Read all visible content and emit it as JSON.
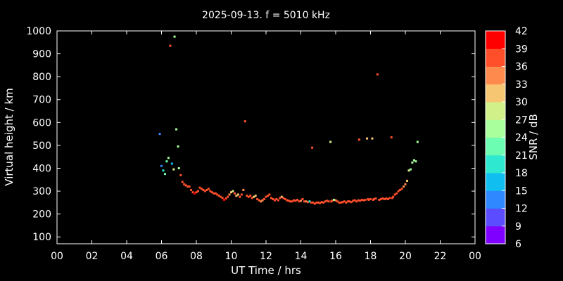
{
  "chart_data": {
    "type": "scatter",
    "title": "2025-09-13. f = 5010 kHz",
    "xlabel": "UT Time / hrs",
    "ylabel": "Virtual height / km",
    "xlim": [
      0,
      24
    ],
    "ylim": [
      70,
      1000
    ],
    "xticks": [
      "00",
      "02",
      "04",
      "06",
      "08",
      "10",
      "12",
      "14",
      "16",
      "18",
      "20",
      "22",
      "00"
    ],
    "yticks": [
      100,
      200,
      300,
      400,
      500,
      600,
      700,
      800,
      900,
      1000
    ],
    "background": "#000000",
    "grid": false,
    "colorbar": {
      "label": "SNR / dB",
      "range": [
        6,
        42
      ],
      "ticks": [
        6,
        9,
        12,
        15,
        18,
        21,
        24,
        27,
        30,
        33,
        36,
        39,
        42
      ],
      "colors": [
        "#7f00ff",
        "#5b4dff",
        "#2f88ff",
        "#10bff0",
        "#2ee8d0",
        "#6cfcb2",
        "#a8ff9c",
        "#d2f08a",
        "#f6c673",
        "#ff8a4e",
        "#ff4f2a",
        "#ff0000"
      ]
    },
    "points": [
      {
        "x": 5.9,
        "y": 550,
        "snr": 14
      },
      {
        "x": 6.0,
        "y": 410,
        "snr": 14
      },
      {
        "x": 6.1,
        "y": 390,
        "snr": 20
      },
      {
        "x": 6.2,
        "y": 375,
        "snr": 21
      },
      {
        "x": 6.3,
        "y": 430,
        "snr": 22
      },
      {
        "x": 6.4,
        "y": 445,
        "snr": 25
      },
      {
        "x": 6.5,
        "y": 935,
        "snr": 36
      },
      {
        "x": 6.6,
        "y": 420,
        "snr": 15
      },
      {
        "x": 6.7,
        "y": 395,
        "snr": 27
      },
      {
        "x": 6.75,
        "y": 975,
        "snr": 24
      },
      {
        "x": 6.85,
        "y": 570,
        "snr": 24
      },
      {
        "x": 6.95,
        "y": 495,
        "snr": 26
      },
      {
        "x": 7.0,
        "y": 400,
        "snr": 25
      },
      {
        "x": 7.1,
        "y": 370,
        "snr": 38
      },
      {
        "x": 7.2,
        "y": 340,
        "snr": 38
      },
      {
        "x": 7.3,
        "y": 330,
        "snr": 37
      },
      {
        "x": 7.4,
        "y": 325,
        "snr": 38
      },
      {
        "x": 7.5,
        "y": 320,
        "snr": 36
      },
      {
        "x": 7.6,
        "y": 320,
        "snr": 38
      },
      {
        "x": 7.7,
        "y": 305,
        "snr": 37
      },
      {
        "x": 7.8,
        "y": 295,
        "snr": 38
      },
      {
        "x": 7.9,
        "y": 290,
        "snr": 39
      },
      {
        "x": 8.0,
        "y": 295,
        "snr": 38
      },
      {
        "x": 8.1,
        "y": 300,
        "snr": 37
      },
      {
        "x": 8.2,
        "y": 315,
        "snr": 38
      },
      {
        "x": 8.3,
        "y": 310,
        "snr": 38
      },
      {
        "x": 8.4,
        "y": 305,
        "snr": 37
      },
      {
        "x": 8.5,
        "y": 300,
        "snr": 38
      },
      {
        "x": 8.6,
        "y": 305,
        "snr": 36
      },
      {
        "x": 8.7,
        "y": 310,
        "snr": 37
      },
      {
        "x": 8.8,
        "y": 300,
        "snr": 38
      },
      {
        "x": 8.9,
        "y": 295,
        "snr": 38
      },
      {
        "x": 9.0,
        "y": 290,
        "snr": 37
      },
      {
        "x": 9.1,
        "y": 290,
        "snr": 38
      },
      {
        "x": 9.2,
        "y": 285,
        "snr": 38
      },
      {
        "x": 9.3,
        "y": 280,
        "snr": 37
      },
      {
        "x": 9.4,
        "y": 275,
        "snr": 38
      },
      {
        "x": 9.5,
        "y": 270,
        "snr": 38
      },
      {
        "x": 9.6,
        "y": 262,
        "snr": 39
      },
      {
        "x": 9.7,
        "y": 268,
        "snr": 38
      },
      {
        "x": 9.8,
        "y": 275,
        "snr": 36
      },
      {
        "x": 9.9,
        "y": 285,
        "snr": 33
      },
      {
        "x": 10.0,
        "y": 295,
        "snr": 31
      },
      {
        "x": 10.1,
        "y": 300,
        "snr": 29
      },
      {
        "x": 10.2,
        "y": 290,
        "snr": 36
      },
      {
        "x": 10.3,
        "y": 280,
        "snr": 30
      },
      {
        "x": 10.4,
        "y": 285,
        "snr": 32
      },
      {
        "x": 10.5,
        "y": 275,
        "snr": 38
      },
      {
        "x": 10.6,
        "y": 285,
        "snr": 37
      },
      {
        "x": 10.7,
        "y": 305,
        "snr": 33
      },
      {
        "x": 10.8,
        "y": 605,
        "snr": 38
      },
      {
        "x": 10.9,
        "y": 280,
        "snr": 38
      },
      {
        "x": 11.0,
        "y": 275,
        "snr": 37
      },
      {
        "x": 11.1,
        "y": 280,
        "snr": 38
      },
      {
        "x": 11.2,
        "y": 270,
        "snr": 38
      },
      {
        "x": 11.3,
        "y": 275,
        "snr": 32
      },
      {
        "x": 11.4,
        "y": 280,
        "snr": 30
      },
      {
        "x": 11.5,
        "y": 265,
        "snr": 37
      },
      {
        "x": 11.6,
        "y": 260,
        "snr": 38
      },
      {
        "x": 11.7,
        "y": 255,
        "snr": 34
      },
      {
        "x": 11.8,
        "y": 260,
        "snr": 33
      },
      {
        "x": 11.9,
        "y": 265,
        "snr": 37
      },
      {
        "x": 12.0,
        "y": 275,
        "snr": 38
      },
      {
        "x": 12.1,
        "y": 280,
        "snr": 36
      },
      {
        "x": 12.2,
        "y": 285,
        "snr": 38
      },
      {
        "x": 12.3,
        "y": 270,
        "snr": 38
      },
      {
        "x": 12.4,
        "y": 265,
        "snr": 37
      },
      {
        "x": 12.5,
        "y": 260,
        "snr": 38
      },
      {
        "x": 12.6,
        "y": 265,
        "snr": 36
      },
      {
        "x": 12.7,
        "y": 260,
        "snr": 38
      },
      {
        "x": 12.8,
        "y": 270,
        "snr": 37
      },
      {
        "x": 12.9,
        "y": 275,
        "snr": 31
      },
      {
        "x": 13.0,
        "y": 270,
        "snr": 38
      },
      {
        "x": 13.1,
        "y": 265,
        "snr": 36
      },
      {
        "x": 13.2,
        "y": 260,
        "snr": 38
      },
      {
        "x": 13.3,
        "y": 258,
        "snr": 38
      },
      {
        "x": 13.4,
        "y": 255,
        "snr": 37
      },
      {
        "x": 13.5,
        "y": 255,
        "snr": 38
      },
      {
        "x": 13.6,
        "y": 260,
        "snr": 37
      },
      {
        "x": 13.7,
        "y": 258,
        "snr": 38
      },
      {
        "x": 13.8,
        "y": 262,
        "snr": 36
      },
      {
        "x": 13.9,
        "y": 255,
        "snr": 38
      },
      {
        "x": 14.0,
        "y": 258,
        "snr": 35
      },
      {
        "x": 14.1,
        "y": 265,
        "snr": 37
      },
      {
        "x": 14.2,
        "y": 255,
        "snr": 38
      },
      {
        "x": 14.3,
        "y": 255,
        "snr": 33
      },
      {
        "x": 14.4,
        "y": 252,
        "snr": 38
      },
      {
        "x": 14.5,
        "y": 255,
        "snr": 20
      },
      {
        "x": 14.6,
        "y": 250,
        "snr": 38
      },
      {
        "x": 14.65,
        "y": 490,
        "snr": 38
      },
      {
        "x": 14.7,
        "y": 250,
        "snr": 37
      },
      {
        "x": 14.8,
        "y": 245,
        "snr": 38
      },
      {
        "x": 14.9,
        "y": 250,
        "snr": 38
      },
      {
        "x": 15.0,
        "y": 250,
        "snr": 37
      },
      {
        "x": 15.1,
        "y": 248,
        "snr": 38
      },
      {
        "x": 15.2,
        "y": 252,
        "snr": 38
      },
      {
        "x": 15.3,
        "y": 250,
        "snr": 37
      },
      {
        "x": 15.4,
        "y": 255,
        "snr": 38
      },
      {
        "x": 15.5,
        "y": 258,
        "snr": 38
      },
      {
        "x": 15.6,
        "y": 255,
        "snr": 37
      },
      {
        "x": 15.7,
        "y": 515,
        "snr": 28
      },
      {
        "x": 15.75,
        "y": 255,
        "snr": 38
      },
      {
        "x": 15.8,
        "y": 258,
        "snr": 37
      },
      {
        "x": 15.9,
        "y": 262,
        "snr": 26
      },
      {
        "x": 16.0,
        "y": 260,
        "snr": 35
      },
      {
        "x": 16.1,
        "y": 255,
        "snr": 38
      },
      {
        "x": 16.2,
        "y": 250,
        "snr": 37
      },
      {
        "x": 16.3,
        "y": 250,
        "snr": 38
      },
      {
        "x": 16.4,
        "y": 252,
        "snr": 38
      },
      {
        "x": 16.5,
        "y": 255,
        "snr": 37
      },
      {
        "x": 16.6,
        "y": 250,
        "snr": 38
      },
      {
        "x": 16.7,
        "y": 255,
        "snr": 38
      },
      {
        "x": 16.8,
        "y": 255,
        "snr": 37
      },
      {
        "x": 16.9,
        "y": 252,
        "snr": 38
      },
      {
        "x": 17.0,
        "y": 258,
        "snr": 38
      },
      {
        "x": 17.1,
        "y": 260,
        "snr": 37
      },
      {
        "x": 17.2,
        "y": 255,
        "snr": 38
      },
      {
        "x": 17.3,
        "y": 260,
        "snr": 38
      },
      {
        "x": 17.35,
        "y": 525,
        "snr": 38
      },
      {
        "x": 17.4,
        "y": 258,
        "snr": 37
      },
      {
        "x": 17.5,
        "y": 262,
        "snr": 38
      },
      {
        "x": 17.6,
        "y": 260,
        "snr": 38
      },
      {
        "x": 17.7,
        "y": 262,
        "snr": 37
      },
      {
        "x": 17.8,
        "y": 530,
        "snr": 30
      },
      {
        "x": 17.85,
        "y": 265,
        "snr": 38
      },
      {
        "x": 17.9,
        "y": 262,
        "snr": 38
      },
      {
        "x": 18.0,
        "y": 265,
        "snr": 37
      },
      {
        "x": 18.1,
        "y": 530,
        "snr": 30
      },
      {
        "x": 18.15,
        "y": 262,
        "snr": 38
      },
      {
        "x": 18.2,
        "y": 265,
        "snr": 38
      },
      {
        "x": 18.3,
        "y": 268,
        "snr": 37
      },
      {
        "x": 18.4,
        "y": 810,
        "snr": 36
      },
      {
        "x": 18.5,
        "y": 262,
        "snr": 38
      },
      {
        "x": 18.6,
        "y": 265,
        "snr": 38
      },
      {
        "x": 18.7,
        "y": 268,
        "snr": 37
      },
      {
        "x": 18.8,
        "y": 265,
        "snr": 38
      },
      {
        "x": 18.9,
        "y": 268,
        "snr": 37
      },
      {
        "x": 19.0,
        "y": 265,
        "snr": 38
      },
      {
        "x": 19.1,
        "y": 270,
        "snr": 38
      },
      {
        "x": 19.2,
        "y": 535,
        "snr": 38
      },
      {
        "x": 19.25,
        "y": 270,
        "snr": 37
      },
      {
        "x": 19.3,
        "y": 275,
        "snr": 38
      },
      {
        "x": 19.4,
        "y": 285,
        "snr": 38
      },
      {
        "x": 19.5,
        "y": 290,
        "snr": 37
      },
      {
        "x": 19.6,
        "y": 300,
        "snr": 38
      },
      {
        "x": 19.7,
        "y": 305,
        "snr": 37
      },
      {
        "x": 19.8,
        "y": 310,
        "snr": 37
      },
      {
        "x": 19.9,
        "y": 320,
        "snr": 35
      },
      {
        "x": 20.0,
        "y": 330,
        "snr": 33
      },
      {
        "x": 20.1,
        "y": 345,
        "snr": 30
      },
      {
        "x": 20.2,
        "y": 390,
        "snr": 27
      },
      {
        "x": 20.3,
        "y": 395,
        "snr": 26
      },
      {
        "x": 20.4,
        "y": 425,
        "snr": 26
      },
      {
        "x": 20.5,
        "y": 435,
        "snr": 25
      },
      {
        "x": 20.6,
        "y": 430,
        "snr": 24
      },
      {
        "x": 20.7,
        "y": 515,
        "snr": 24
      }
    ]
  }
}
